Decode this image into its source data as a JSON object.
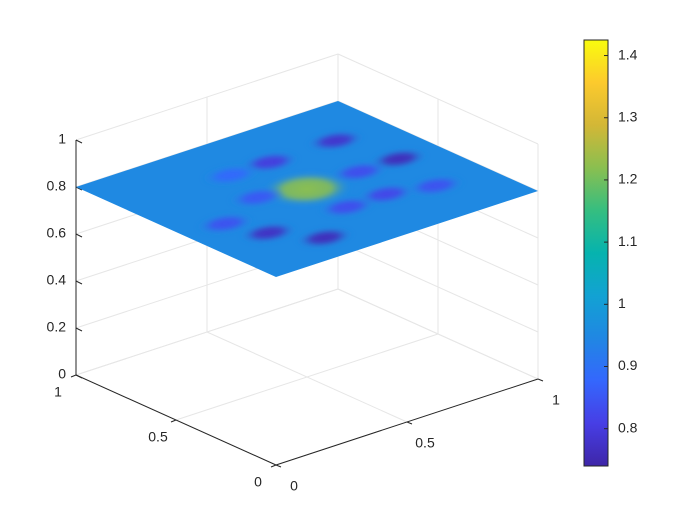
{
  "chart_data": [
    {
      "type": "surface",
      "title": "",
      "xlabel": "",
      "ylabel": "",
      "zlabel": "",
      "xlim": [
        0,
        1
      ],
      "ylim": [
        0,
        1
      ],
      "zlim": [
        0,
        1
      ],
      "x_ticks": [
        "0",
        "0.5",
        "1"
      ],
      "y_ticks": [
        "0",
        "0.5",
        "1"
      ],
      "z_ticks": [
        "0",
        "0.2",
        "0.4",
        "0.6",
        "0.8",
        "1"
      ],
      "surface_height": 0.8,
      "color_base": 0.95,
      "color_features": [
        {
          "x": 0.5,
          "y": 0.5,
          "value": 1.22,
          "kind": "peak"
        },
        {
          "x": 0.3,
          "y": 0.15,
          "value": 0.76,
          "kind": "dip"
        },
        {
          "x": 0.2,
          "y": 0.3,
          "value": 0.77,
          "kind": "dip"
        },
        {
          "x": 0.15,
          "y": 0.45,
          "value": 0.84,
          "kind": "dip"
        },
        {
          "x": 0.35,
          "y": 0.55,
          "value": 0.85,
          "kind": "dip"
        },
        {
          "x": 0.55,
          "y": 0.75,
          "value": 0.8,
          "kind": "dip"
        },
        {
          "x": 0.8,
          "y": 0.75,
          "value": 0.78,
          "kind": "dip"
        },
        {
          "x": 0.85,
          "y": 0.5,
          "value": 0.76,
          "kind": "dip"
        },
        {
          "x": 0.7,
          "y": 0.5,
          "value": 0.83,
          "kind": "dip"
        },
        {
          "x": 0.65,
          "y": 0.3,
          "value": 0.82,
          "kind": "dip"
        },
        {
          "x": 0.8,
          "y": 0.25,
          "value": 0.84,
          "kind": "dip"
        },
        {
          "x": 0.5,
          "y": 0.3,
          "value": 0.83,
          "kind": "dip"
        },
        {
          "x": 0.4,
          "y": 0.75,
          "value": 0.88,
          "kind": "dip"
        }
      ],
      "grid": true,
      "view": "3d-isometric"
    },
    {
      "type": "colorbar",
      "clim": [
        0.74,
        1.425
      ],
      "ticks": [
        "1.4",
        "1.3",
        "1.2",
        "1.1",
        "1",
        "0.9",
        "0.8"
      ],
      "colormap": "parula"
    }
  ]
}
